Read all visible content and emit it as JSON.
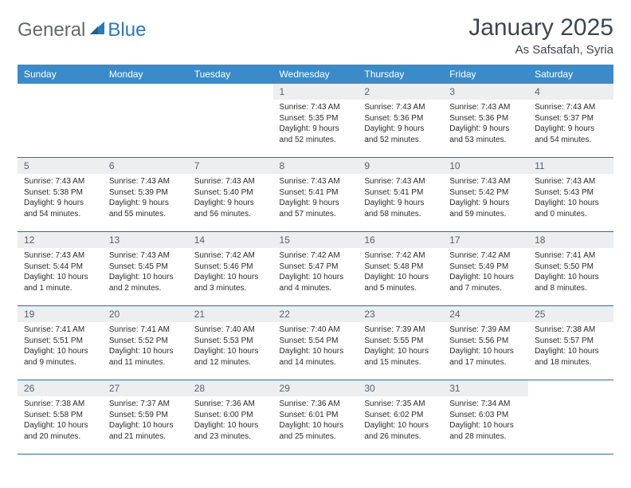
{
  "logo": {
    "part1": "General",
    "part2": "Blue"
  },
  "title": "January 2025",
  "subtitle": "As Safsafah, Syria",
  "dayHeaders": [
    "Sunday",
    "Monday",
    "Tuesday",
    "Wednesday",
    "Thursday",
    "Friday",
    "Saturday"
  ],
  "colors": {
    "headerBg": "#3b8bc8",
    "headerText": "#ffffff",
    "dayNumBg": "#eceef0",
    "rowBorder": "#2a6fa8",
    "logoAccent": "#2a7ab8",
    "logoGray": "#5f6a72",
    "titleColor": "#3c4650"
  },
  "weeks": [
    [
      {
        "n": "",
        "lines": []
      },
      {
        "n": "",
        "lines": []
      },
      {
        "n": "",
        "lines": []
      },
      {
        "n": "1",
        "lines": [
          "Sunrise: 7:43 AM",
          "Sunset: 5:35 PM",
          "Daylight: 9 hours",
          "and 52 minutes."
        ]
      },
      {
        "n": "2",
        "lines": [
          "Sunrise: 7:43 AM",
          "Sunset: 5:36 PM",
          "Daylight: 9 hours",
          "and 52 minutes."
        ]
      },
      {
        "n": "3",
        "lines": [
          "Sunrise: 7:43 AM",
          "Sunset: 5:36 PM",
          "Daylight: 9 hours",
          "and 53 minutes."
        ]
      },
      {
        "n": "4",
        "lines": [
          "Sunrise: 7:43 AM",
          "Sunset: 5:37 PM",
          "Daylight: 9 hours",
          "and 54 minutes."
        ]
      }
    ],
    [
      {
        "n": "5",
        "lines": [
          "Sunrise: 7:43 AM",
          "Sunset: 5:38 PM",
          "Daylight: 9 hours",
          "and 54 minutes."
        ]
      },
      {
        "n": "6",
        "lines": [
          "Sunrise: 7:43 AM",
          "Sunset: 5:39 PM",
          "Daylight: 9 hours",
          "and 55 minutes."
        ]
      },
      {
        "n": "7",
        "lines": [
          "Sunrise: 7:43 AM",
          "Sunset: 5:40 PM",
          "Daylight: 9 hours",
          "and 56 minutes."
        ]
      },
      {
        "n": "8",
        "lines": [
          "Sunrise: 7:43 AM",
          "Sunset: 5:41 PM",
          "Daylight: 9 hours",
          "and 57 minutes."
        ]
      },
      {
        "n": "9",
        "lines": [
          "Sunrise: 7:43 AM",
          "Sunset: 5:41 PM",
          "Daylight: 9 hours",
          "and 58 minutes."
        ]
      },
      {
        "n": "10",
        "lines": [
          "Sunrise: 7:43 AM",
          "Sunset: 5:42 PM",
          "Daylight: 9 hours",
          "and 59 minutes."
        ]
      },
      {
        "n": "11",
        "lines": [
          "Sunrise: 7:43 AM",
          "Sunset: 5:43 PM",
          "Daylight: 10 hours",
          "and 0 minutes."
        ]
      }
    ],
    [
      {
        "n": "12",
        "lines": [
          "Sunrise: 7:43 AM",
          "Sunset: 5:44 PM",
          "Daylight: 10 hours",
          "and 1 minute."
        ]
      },
      {
        "n": "13",
        "lines": [
          "Sunrise: 7:43 AM",
          "Sunset: 5:45 PM",
          "Daylight: 10 hours",
          "and 2 minutes."
        ]
      },
      {
        "n": "14",
        "lines": [
          "Sunrise: 7:42 AM",
          "Sunset: 5:46 PM",
          "Daylight: 10 hours",
          "and 3 minutes."
        ]
      },
      {
        "n": "15",
        "lines": [
          "Sunrise: 7:42 AM",
          "Sunset: 5:47 PM",
          "Daylight: 10 hours",
          "and 4 minutes."
        ]
      },
      {
        "n": "16",
        "lines": [
          "Sunrise: 7:42 AM",
          "Sunset: 5:48 PM",
          "Daylight: 10 hours",
          "and 5 minutes."
        ]
      },
      {
        "n": "17",
        "lines": [
          "Sunrise: 7:42 AM",
          "Sunset: 5:49 PM",
          "Daylight: 10 hours",
          "and 7 minutes."
        ]
      },
      {
        "n": "18",
        "lines": [
          "Sunrise: 7:41 AM",
          "Sunset: 5:50 PM",
          "Daylight: 10 hours",
          "and 8 minutes."
        ]
      }
    ],
    [
      {
        "n": "19",
        "lines": [
          "Sunrise: 7:41 AM",
          "Sunset: 5:51 PM",
          "Daylight: 10 hours",
          "and 9 minutes."
        ]
      },
      {
        "n": "20",
        "lines": [
          "Sunrise: 7:41 AM",
          "Sunset: 5:52 PM",
          "Daylight: 10 hours",
          "and 11 minutes."
        ]
      },
      {
        "n": "21",
        "lines": [
          "Sunrise: 7:40 AM",
          "Sunset: 5:53 PM",
          "Daylight: 10 hours",
          "and 12 minutes."
        ]
      },
      {
        "n": "22",
        "lines": [
          "Sunrise: 7:40 AM",
          "Sunset: 5:54 PM",
          "Daylight: 10 hours",
          "and 14 minutes."
        ]
      },
      {
        "n": "23",
        "lines": [
          "Sunrise: 7:39 AM",
          "Sunset: 5:55 PM",
          "Daylight: 10 hours",
          "and 15 minutes."
        ]
      },
      {
        "n": "24",
        "lines": [
          "Sunrise: 7:39 AM",
          "Sunset: 5:56 PM",
          "Daylight: 10 hours",
          "and 17 minutes."
        ]
      },
      {
        "n": "25",
        "lines": [
          "Sunrise: 7:38 AM",
          "Sunset: 5:57 PM",
          "Daylight: 10 hours",
          "and 18 minutes."
        ]
      }
    ],
    [
      {
        "n": "26",
        "lines": [
          "Sunrise: 7:38 AM",
          "Sunset: 5:58 PM",
          "Daylight: 10 hours",
          "and 20 minutes."
        ]
      },
      {
        "n": "27",
        "lines": [
          "Sunrise: 7:37 AM",
          "Sunset: 5:59 PM",
          "Daylight: 10 hours",
          "and 21 minutes."
        ]
      },
      {
        "n": "28",
        "lines": [
          "Sunrise: 7:36 AM",
          "Sunset: 6:00 PM",
          "Daylight: 10 hours",
          "and 23 minutes."
        ]
      },
      {
        "n": "29",
        "lines": [
          "Sunrise: 7:36 AM",
          "Sunset: 6:01 PM",
          "Daylight: 10 hours",
          "and 25 minutes."
        ]
      },
      {
        "n": "30",
        "lines": [
          "Sunrise: 7:35 AM",
          "Sunset: 6:02 PM",
          "Daylight: 10 hours",
          "and 26 minutes."
        ]
      },
      {
        "n": "31",
        "lines": [
          "Sunrise: 7:34 AM",
          "Sunset: 6:03 PM",
          "Daylight: 10 hours",
          "and 28 minutes."
        ]
      },
      {
        "n": "",
        "lines": []
      }
    ]
  ]
}
